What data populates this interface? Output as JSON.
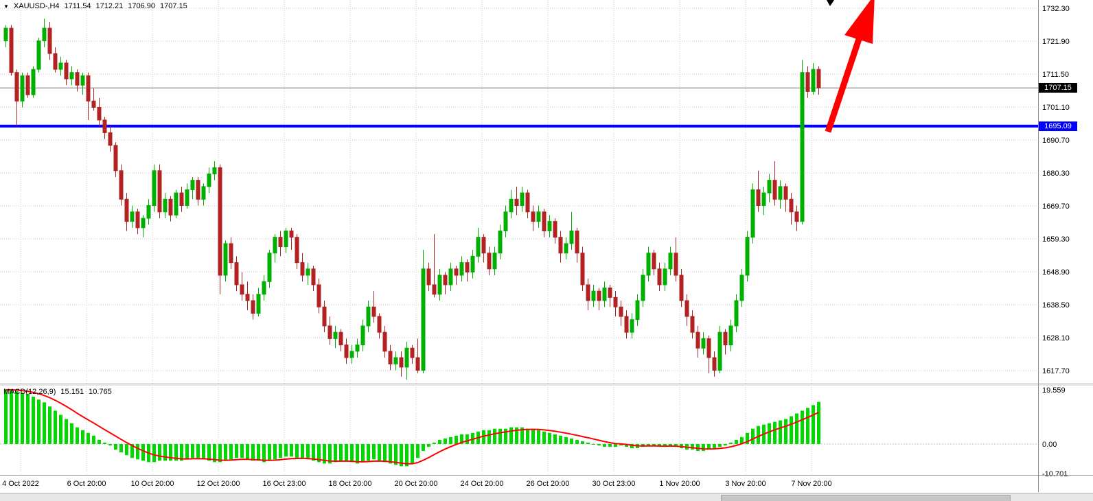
{
  "quote_bar": {
    "symbol_timeframe": "XAUUSD-,H4",
    "open": "1711.54",
    "high": "1712.21",
    "low": "1706.90",
    "close": "1707.15"
  },
  "macd_header": {
    "label": "MACD(12,26,9)",
    "macd_value": "15.151",
    "signal_value": "10.765"
  },
  "price_axis": {
    "labels": [
      "1732.30",
      "1721.90",
      "1711.50",
      "1701.10",
      "1690.70",
      "1680.30",
      "1669.70",
      "1659.30",
      "1648.90",
      "1638.50",
      "1628.10",
      "1617.70"
    ],
    "current_price_label": "1707.15",
    "hline_price_label": "1695.09"
  },
  "macd_axis": {
    "labels": [
      "19.559",
      "0.00",
      "-10.701"
    ]
  },
  "time_axis": {
    "labels": [
      "4 Oct 2022",
      "6 Oct 20:00",
      "10 Oct 20:00",
      "12 Oct 20:00",
      "16 Oct 23:00",
      "18 Oct 20:00",
      "20 Oct 20:00",
      "24 Oct 20:00",
      "26 Oct 20:00",
      "30 Oct 23:00",
      "1 Nov 20:00",
      "3 Nov 20:00",
      "7 Nov 20:00"
    ],
    "scrollbar": ""
  },
  "colors": {
    "bull": "#00b000",
    "bear": "#b22222",
    "wick_bull": "#008000",
    "wick_bear": "#8b1a1a",
    "histogram": "#00d800",
    "signal": "#ff0000",
    "hline": "#0000ff",
    "current_price_line": "#808080",
    "grid": "#cdcdcd",
    "arrow": "#ff0000",
    "separator": "#9a9a9a"
  },
  "chart_data": {
    "type": "candlestick",
    "title": "XAUUSD- H4 with MACD(12,26,9)",
    "symbol": "XAUUSD-",
    "timeframe": "H4",
    "ohlc_display": {
      "open": 1711.54,
      "high": 1712.21,
      "low": 1706.9,
      "close": 1707.15
    },
    "price_axis_ticks": [
      1732.3,
      1721.9,
      1711.5,
      1701.1,
      1690.7,
      1680.3,
      1669.7,
      1659.3,
      1648.9,
      1638.5,
      1628.1,
      1617.7
    ],
    "time_axis_ticks": [
      "4 Oct 2022",
      "6 Oct 20:00",
      "10 Oct 20:00",
      "12 Oct 20:00",
      "16 Oct 23:00",
      "18 Oct 20:00",
      "20 Oct 20:00",
      "24 Oct 20:00",
      "26 Oct 20:00",
      "30 Oct 23:00",
      "1 Nov 20:00",
      "3 Nov 20:00",
      "7 Nov 20:00"
    ],
    "horizontal_line": 1695.09,
    "current_price": 1707.15,
    "annotations": [
      {
        "type": "arrow",
        "direction": "up-right",
        "color": "#ff0000"
      },
      {
        "type": "marker",
        "color": "#000000"
      }
    ],
    "candles": [
      [
        1722,
        1727,
        1720,
        1726
      ],
      [
        1726,
        1727,
        1711,
        1712
      ],
      [
        1712,
        1713,
        1695,
        1703
      ],
      [
        1703,
        1712,
        1701,
        1711
      ],
      [
        1711,
        1712,
        1704,
        1705
      ],
      [
        1705,
        1714,
        1704,
        1713
      ],
      [
        1713,
        1723,
        1712,
        1722
      ],
      [
        1722,
        1729,
        1720,
        1726
      ],
      [
        1726,
        1728,
        1716,
        1718
      ],
      [
        1718,
        1720,
        1712,
        1713
      ],
      [
        1713,
        1717,
        1711,
        1715
      ],
      [
        1715,
        1716,
        1708,
        1710
      ],
      [
        1710,
        1714,
        1708,
        1712
      ],
      [
        1712,
        1713,
        1706,
        1708
      ],
      [
        1708,
        1712,
        1705,
        1711
      ],
      [
        1711,
        1712,
        1697,
        1703
      ],
      [
        1703,
        1707,
        1700,
        1701
      ],
      [
        1701,
        1704,
        1695,
        1697
      ],
      [
        1697,
        1698,
        1691,
        1693
      ],
      [
        1693,
        1695,
        1687,
        1689
      ],
      [
        1689,
        1690,
        1679,
        1681
      ],
      [
        1681,
        1683,
        1670,
        1672
      ],
      [
        1672,
        1674,
        1662,
        1665
      ],
      [
        1665,
        1670,
        1663,
        1668
      ],
      [
        1668,
        1669,
        1661,
        1663
      ],
      [
        1663,
        1667,
        1660,
        1666
      ],
      [
        1666,
        1672,
        1664,
        1670
      ],
      [
        1670,
        1683,
        1668,
        1681
      ],
      [
        1681,
        1683,
        1666,
        1668
      ],
      [
        1668,
        1674,
        1666,
        1672
      ],
      [
        1672,
        1673,
        1665,
        1667
      ],
      [
        1667,
        1675,
        1666,
        1674
      ],
      [
        1674,
        1676,
        1668,
        1670
      ],
      [
        1670,
        1677,
        1669,
        1675
      ],
      [
        1675,
        1679,
        1672,
        1678
      ],
      [
        1678,
        1679,
        1670,
        1672
      ],
      [
        1672,
        1677,
        1670,
        1676
      ],
      [
        1676,
        1682,
        1674,
        1680
      ],
      [
        1680,
        1684,
        1678,
        1682
      ],
      [
        1682,
        1683,
        1642,
        1648
      ],
      [
        1648,
        1659,
        1646,
        1658
      ],
      [
        1658,
        1660,
        1650,
        1652
      ],
      [
        1652,
        1654,
        1643,
        1645
      ],
      [
        1645,
        1649,
        1640,
        1642
      ],
      [
        1642,
        1646,
        1637,
        1640
      ],
      [
        1640,
        1642,
        1634,
        1636
      ],
      [
        1636,
        1644,
        1635,
        1642
      ],
      [
        1642,
        1648,
        1640,
        1646
      ],
      [
        1646,
        1656,
        1644,
        1655
      ],
      [
        1655,
        1661,
        1652,
        1660
      ],
      [
        1660,
        1662,
        1654,
        1657
      ],
      [
        1657,
        1663,
        1655,
        1662
      ],
      [
        1662,
        1663,
        1656,
        1660
      ],
      [
        1660,
        1661,
        1650,
        1652
      ],
      [
        1652,
        1655,
        1646,
        1648
      ],
      [
        1648,
        1652,
        1645,
        1650
      ],
      [
        1650,
        1651,
        1643,
        1645
      ],
      [
        1645,
        1647,
        1636,
        1638
      ],
      [
        1638,
        1640,
        1630,
        1632
      ],
      [
        1632,
        1635,
        1626,
        1628
      ],
      [
        1628,
        1632,
        1625,
        1630
      ],
      [
        1630,
        1631,
        1624,
        1626
      ],
      [
        1626,
        1628,
        1620,
        1622
      ],
      [
        1622,
        1626,
        1620,
        1624
      ],
      [
        1624,
        1628,
        1622,
        1626
      ],
      [
        1626,
        1634,
        1624,
        1632
      ],
      [
        1632,
        1640,
        1630,
        1638
      ],
      [
        1638,
        1643,
        1633,
        1635
      ],
      [
        1635,
        1636,
        1628,
        1630
      ],
      [
        1630,
        1632,
        1622,
        1624
      ],
      [
        1624,
        1626,
        1618,
        1620
      ],
      [
        1620,
        1624,
        1618,
        1622
      ],
      [
        1622,
        1624,
        1616,
        1619
      ],
      [
        1619,
        1627,
        1615,
        1625
      ],
      [
        1625,
        1626,
        1620,
        1622
      ],
      [
        1622,
        1628,
        1617,
        1618
      ],
      [
        1618,
        1656,
        1617,
        1650
      ],
      [
        1650,
        1652,
        1643,
        1645
      ],
      [
        1645,
        1661,
        1641,
        1642
      ],
      [
        1642,
        1650,
        1640,
        1648
      ],
      [
        1648,
        1649,
        1642,
        1645
      ],
      [
        1645,
        1652,
        1643,
        1650
      ],
      [
        1650,
        1651,
        1645,
        1648
      ],
      [
        1648,
        1654,
        1646,
        1652
      ],
      [
        1652,
        1653,
        1646,
        1649
      ],
      [
        1649,
        1656,
        1647,
        1654
      ],
      [
        1654,
        1663,
        1652,
        1660
      ],
      [
        1660,
        1661,
        1652,
        1655
      ],
      [
        1655,
        1657,
        1648,
        1650
      ],
      [
        1650,
        1657,
        1648,
        1655
      ],
      [
        1655,
        1664,
        1653,
        1662
      ],
      [
        1662,
        1670,
        1660,
        1668
      ],
      [
        1668,
        1675,
        1666,
        1672
      ],
      [
        1672,
        1676,
        1667,
        1670
      ],
      [
        1670,
        1676,
        1668,
        1674
      ],
      [
        1674,
        1675,
        1666,
        1668
      ],
      [
        1668,
        1670,
        1662,
        1665
      ],
      [
        1665,
        1670,
        1663,
        1668
      ],
      [
        1668,
        1669,
        1660,
        1662
      ],
      [
        1662,
        1667,
        1660,
        1665
      ],
      [
        1665,
        1666,
        1658,
        1660
      ],
      [
        1660,
        1662,
        1652,
        1655
      ],
      [
        1655,
        1660,
        1653,
        1658
      ],
      [
        1658,
        1668,
        1656,
        1662
      ],
      [
        1662,
        1663,
        1652,
        1655
      ],
      [
        1655,
        1657,
        1643,
        1645
      ],
      [
        1645,
        1647,
        1637,
        1640
      ],
      [
        1640,
        1645,
        1638,
        1643
      ],
      [
        1643,
        1644,
        1637,
        1640
      ],
      [
        1640,
        1646,
        1638,
        1644
      ],
      [
        1644,
        1645,
        1638,
        1641
      ],
      [
        1641,
        1643,
        1635,
        1638
      ],
      [
        1638,
        1640,
        1632,
        1635
      ],
      [
        1635,
        1637,
        1628,
        1630
      ],
      [
        1630,
        1636,
        1628,
        1634
      ],
      [
        1634,
        1642,
        1632,
        1640
      ],
      [
        1640,
        1650,
        1638,
        1648
      ],
      [
        1648,
        1657,
        1646,
        1655
      ],
      [
        1655,
        1656,
        1648,
        1650
      ],
      [
        1650,
        1652,
        1643,
        1645
      ],
      [
        1645,
        1652,
        1643,
        1650
      ],
      [
        1650,
        1657,
        1648,
        1655
      ],
      [
        1655,
        1660,
        1646,
        1648
      ],
      [
        1648,
        1650,
        1638,
        1640
      ],
      [
        1640,
        1642,
        1632,
        1635
      ],
      [
        1635,
        1637,
        1628,
        1630
      ],
      [
        1630,
        1632,
        1622,
        1625
      ],
      [
        1625,
        1630,
        1623,
        1628
      ],
      [
        1628,
        1629,
        1617,
        1622
      ],
      [
        1622,
        1624,
        1616,
        1618
      ],
      [
        1618,
        1632,
        1617,
        1630
      ],
      [
        1630,
        1631,
        1623,
        1626
      ],
      [
        1626,
        1634,
        1624,
        1632
      ],
      [
        1632,
        1642,
        1630,
        1640
      ],
      [
        1640,
        1650,
        1638,
        1648
      ],
      [
        1648,
        1662,
        1646,
        1660
      ],
      [
        1660,
        1677,
        1658,
        1675
      ],
      [
        1675,
        1681,
        1668,
        1670
      ],
      [
        1670,
        1676,
        1667,
        1674
      ],
      [
        1674,
        1680,
        1671,
        1678
      ],
      [
        1678,
        1684,
        1670,
        1672
      ],
      [
        1672,
        1678,
        1669,
        1676
      ],
      [
        1676,
        1677,
        1668,
        1672
      ],
      [
        1672,
        1674,
        1664,
        1668
      ],
      [
        1668,
        1670,
        1662,
        1665
      ],
      [
        1665,
        1716,
        1664,
        1712
      ],
      [
        1712,
        1714,
        1704,
        1706
      ],
      [
        1706,
        1715,
        1705,
        1713
      ],
      [
        1713,
        1714,
        1705,
        1707.15
      ]
    ],
    "macd": {
      "label": "MACD(12,26,9)",
      "macd_value": 15.151,
      "signal_value": 10.765,
      "signal_period": 9,
      "scale_max": 19.559,
      "scale_min": -10.701,
      "histogram": [
        19.5,
        19.5,
        19.0,
        18.5,
        18.0,
        17.0,
        16.0,
        15.0,
        13.5,
        12.0,
        10.5,
        9.0,
        7.5,
        6.0,
        5.0,
        4.0,
        3.0,
        1.5,
        0.5,
        -0.5,
        -2.0,
        -3.0,
        -4.0,
        -5.0,
        -5.5,
        -6.0,
        -6.5,
        -6.5,
        -6.0,
        -6.0,
        -6.0,
        -6.0,
        -6.0,
        -5.5,
        -5.0,
        -5.0,
        -5.5,
        -6.0,
        -6.5,
        -6.5,
        -6.0,
        -5.5,
        -5.0,
        -5.0,
        -5.5,
        -6.0,
        -6.0,
        -6.5,
        -6.0,
        -5.5,
        -5.0,
        -4.5,
        -4.5,
        -5.0,
        -5.0,
        -5.5,
        -6.0,
        -6.5,
        -7.0,
        -7.0,
        -6.5,
        -6.0,
        -6.0,
        -6.5,
        -7.0,
        -6.5,
        -6.0,
        -5.5,
        -6.0,
        -6.5,
        -7.0,
        -7.5,
        -8.0,
        -8.0,
        -7.0,
        -5.0,
        -2.5,
        -1.0,
        0.5,
        1.5,
        2.0,
        2.5,
        3.0,
        3.5,
        3.5,
        4.0,
        4.5,
        5.0,
        5.0,
        5.5,
        5.5,
        5.5,
        6.0,
        6.0,
        6.0,
        5.5,
        5.5,
        5.0,
        4.5,
        4.0,
        3.5,
        3.0,
        2.5,
        2.0,
        1.5,
        1.0,
        0.5,
        0.0,
        -0.5,
        -1.0,
        -1.0,
        -1.0,
        -0.5,
        -1.0,
        -1.5,
        -1.5,
        -1.0,
        -0.5,
        -0.5,
        -1.0,
        -1.0,
        -0.5,
        -1.0,
        -1.5,
        -2.0,
        -2.0,
        -2.5,
        -2.5,
        -2.0,
        -1.5,
        -1.0,
        -0.5,
        0.5,
        1.5,
        2.5,
        4.0,
        5.5,
        6.5,
        7.0,
        7.5,
        8.0,
        8.5,
        9.0,
        10.0,
        11.0,
        12.0,
        13.0,
        14.0,
        15.151
      ]
    }
  }
}
